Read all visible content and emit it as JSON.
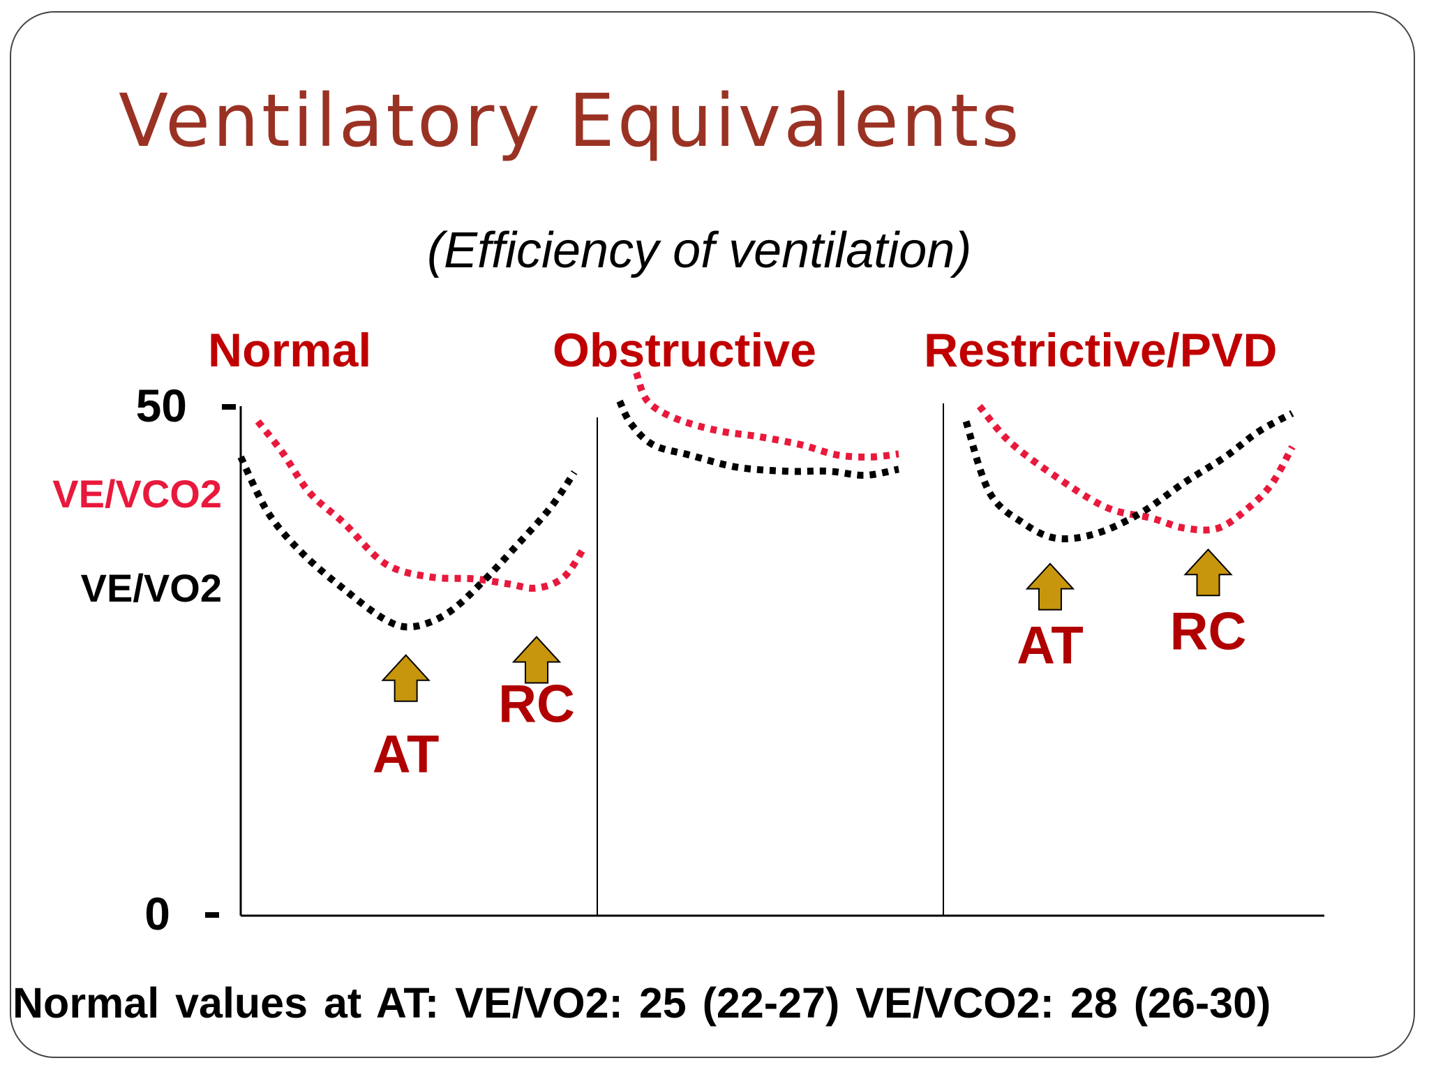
{
  "title": "Ventilatory Equivalents",
  "subtitle": "(Efficiency of ventilation)",
  "footer": "Normal values at AT:  VE/VO2: 25 (22-27)  VE/VCO2:  28 (26-30)",
  "colors": {
    "title": "#9a3224",
    "panel_title": "#c00000",
    "ve_vco2": "#e8193c",
    "ve_vo2": "#000000",
    "arrow_fill": "#c8960c",
    "marker_label": "#b00000"
  },
  "chart_data": {
    "type": "line",
    "ylim": [
      0,
      50
    ],
    "yticks": [
      {
        "value": 50,
        "label": "50"
      },
      {
        "value": 0,
        "label": "0"
      }
    ],
    "xlim": [
      0,
      1
    ],
    "line_style": "dotted",
    "grid": false,
    "panels": [
      {
        "title": "Normal",
        "series": [
          {
            "name": "VE/VCO2",
            "color": "#e8193c",
            "x": [
              0.05,
              0.12,
              0.2,
              0.3,
              0.42,
              0.55,
              0.68,
              0.78,
              0.86,
              0.94,
              1.0
            ],
            "y": [
              48.5,
              45.5,
              41.5,
              38.5,
              34.5,
              33.2,
              33.0,
              32.5,
              32.1,
              33.2,
              36.2
            ]
          },
          {
            "name": "VE/VO2",
            "color": "#000000",
            "x": [
              0.0,
              0.08,
              0.18,
              0.3,
              0.42,
              0.5,
              0.6,
              0.7,
              0.8,
              0.9,
              0.97
            ],
            "y": [
              45.0,
              39.5,
              35.5,
              32.0,
              29.0,
              28.3,
              29.6,
              32.6,
              36.2,
              40.0,
              43.5
            ]
          }
        ],
        "annotations": [
          {
            "label": "AT",
            "x": 0.48,
            "y": 25.5
          },
          {
            "label": "RC",
            "x": 0.86,
            "y": 27.3
          }
        ]
      },
      {
        "title": "Obstructive",
        "series": [
          {
            "name": "VE/VCO2",
            "color": "#e8193c",
            "x": [
              0.06,
              0.1,
              0.2,
              0.35,
              0.5,
              0.65,
              0.78,
              0.9,
              1.0
            ],
            "y": [
              53.3,
              50.5,
              48.8,
              47.6,
              47.0,
              46.2,
              45.2,
              45.0,
              45.3
            ]
          },
          {
            "name": "VE/VO2",
            "color": "#000000",
            "x": [
              0.0,
              0.04,
              0.12,
              0.25,
              0.42,
              0.6,
              0.75,
              0.88,
              1.0
            ],
            "y": [
              50.5,
              48.3,
              46.2,
              45.2,
              44.0,
              43.6,
              43.6,
              43.2,
              43.8
            ]
          }
        ]
      },
      {
        "title": "Restrictive/PVD",
        "series": [
          {
            "name": "VE/VCO2",
            "color": "#e8193c",
            "x": [
              0.07,
              0.16,
              0.3,
              0.45,
              0.58,
              0.68,
              0.78,
              0.87,
              0.94,
              1.0
            ],
            "y": [
              50.0,
              46.5,
              43.0,
              40.0,
              39.0,
              38.0,
              38.0,
              40.0,
              42.4,
              46.0
            ]
          },
          {
            "name": "VE/VO2",
            "color": "#000000",
            "x": [
              0.03,
              0.1,
              0.2,
              0.3,
              0.42,
              0.55,
              0.68,
              0.8,
              0.9,
              1.0
            ],
            "y": [
              48.5,
              41.5,
              38.5,
              37.0,
              37.5,
              39.5,
              42.5,
              45.0,
              47.5,
              49.3
            ]
          }
        ],
        "annotations": [
          {
            "label": "AT",
            "x": 0.28,
            "y": 34.5
          },
          {
            "label": "RC",
            "x": 0.75,
            "y": 35.9
          }
        ]
      }
    ]
  }
}
